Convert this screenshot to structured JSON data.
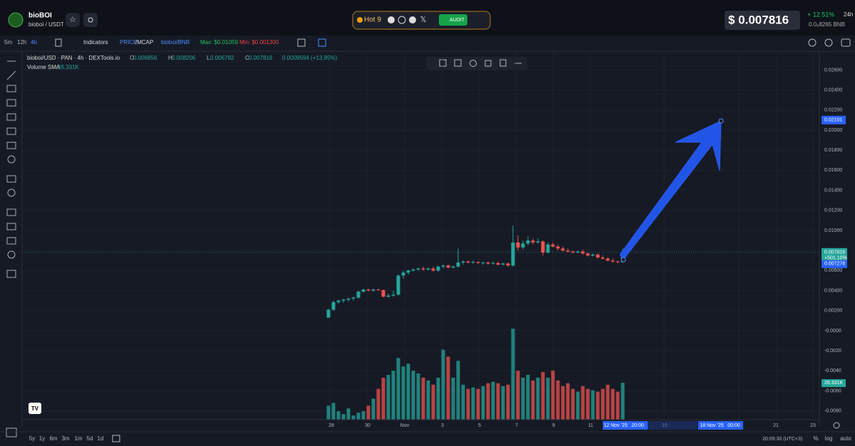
{
  "header": {
    "token": "bioBOI",
    "pair": "bioboi / USDT",
    "hot": "Hot 9",
    "audit": "AUDIT",
    "price": "$ 0.007816",
    "change": "+ 12.51%",
    "period": "24h",
    "bnb": "0.0₈8265 BNB"
  },
  "toolbar": {
    "timeframes": [
      "5m",
      "12h",
      "4h"
    ],
    "indicators": "Indicators",
    "price": "PRICE",
    "mcap": "/MCAP",
    "quote": "bioboi/BNB",
    "max": "Max: $0.01059",
    "min": "Min: $0.001300"
  },
  "legend": {
    "source": "bioboi/USD · PAN · 4h · DEXTools.io",
    "ohlc": [
      {
        "k": "O",
        "v": "0.006856"
      },
      {
        "k": "H",
        "v": "0.008206"
      },
      {
        "k": "L",
        "v": "0.006792"
      },
      {
        "k": "C",
        "v": "0.007816"
      }
    ],
    "change": "0.0009594 (+13.99%)",
    "volume": "Volume SMA",
    "volume_value": "26.331K"
  },
  "chart": {
    "type": "candlestick",
    "ylim": [
      -0.00887,
      0.02674
    ],
    "yticks": [
      {
        "value": 0.026,
        "label": "0.02600"
      },
      {
        "value": 0.024,
        "label": "0.02400"
      },
      {
        "value": 0.022,
        "label": "0.02200"
      },
      {
        "value": 0.02,
        "label": "0.02000"
      },
      {
        "value": 0.018,
        "label": "0.01800"
      },
      {
        "value": 0.016,
        "label": "0.01600"
      },
      {
        "value": 0.014,
        "label": "0.01400"
      },
      {
        "value": 0.012,
        "label": "0.01200"
      },
      {
        "value": 0.01,
        "label": "0.01000"
      },
      {
        "value": 0.008,
        "label": "0.00800"
      },
      {
        "value": 0.006,
        "label": "0.00600"
      },
      {
        "value": 0.004,
        "label": "0.00400"
      },
      {
        "value": 0.002,
        "label": "0.00200"
      },
      {
        "value": 0,
        "label": "-0.0000"
      },
      {
        "value": -0.002,
        "label": "-0.0020"
      },
      {
        "value": -0.004,
        "label": "-0.0040"
      },
      {
        "value": -0.006,
        "label": "-0.0060"
      },
      {
        "value": -0.008,
        "label": "-0.0080"
      }
    ],
    "markers": {
      "target": {
        "value": 0.02101,
        "label": "0.02101"
      },
      "last": {
        "value": 0.007816,
        "label": "0.007816",
        "pct": "+501.10%"
      },
      "low": {
        "value": 0.007276,
        "label": "0.007276"
      },
      "volume": "26.331K"
    },
    "candles": [
      [
        0.0013,
        0.0022,
        0.0013,
        0.0021,
        10
      ],
      [
        0.0021,
        0.003,
        0.002,
        0.00285,
        12
      ],
      [
        0.00285,
        0.0031,
        0.0027,
        0.003,
        6
      ],
      [
        0.003,
        0.0032,
        0.0028,
        0.0031,
        4
      ],
      [
        0.0031,
        0.0033,
        0.0029,
        0.0032,
        8
      ],
      [
        0.0032,
        0.0034,
        0.003,
        0.0033,
        3
      ],
      [
        0.0033,
        0.004,
        0.0032,
        0.0039,
        5
      ],
      [
        0.0039,
        0.0042,
        0.0038,
        0.0041,
        6
      ],
      [
        0.0041,
        0.0042,
        0.00395,
        0.004,
        10
      ],
      [
        0.004,
        0.0042,
        0.0039,
        0.0041,
        15
      ],
      [
        0.0041,
        0.0042,
        0.004,
        0.00405,
        22
      ],
      [
        0.00405,
        0.0041,
        0.0033,
        0.0034,
        30
      ],
      [
        0.0034,
        0.0037,
        0.0033,
        0.0035,
        32
      ],
      [
        0.0035,
        0.004,
        0.0034,
        0.0036,
        35
      ],
      [
        0.0036,
        0.0056,
        0.0035,
        0.0055,
        44
      ],
      [
        0.0055,
        0.006,
        0.0052,
        0.0058,
        38
      ],
      [
        0.0058,
        0.0061,
        0.0056,
        0.006,
        40
      ],
      [
        0.006,
        0.0062,
        0.0059,
        0.0061,
        35
      ],
      [
        0.0061,
        0.0063,
        0.006,
        0.0062,
        33
      ],
      [
        0.0062,
        0.0064,
        0.006,
        0.0061,
        30
      ],
      [
        0.0061,
        0.0063,
        0.006,
        0.0062,
        28
      ],
      [
        0.0062,
        0.0064,
        0.0059,
        0.006,
        25
      ],
      [
        0.006,
        0.0065,
        0.0059,
        0.0064,
        30
      ],
      [
        0.0064,
        0.0066,
        0.0062,
        0.0065,
        50
      ],
      [
        0.0065,
        0.0066,
        0.0062,
        0.0063,
        45
      ],
      [
        0.0063,
        0.0065,
        0.0062,
        0.0064,
        30
      ],
      [
        0.0064,
        0.0082,
        0.0063,
        0.0068,
        42
      ],
      [
        0.0068,
        0.007,
        0.0066,
        0.0069,
        25
      ],
      [
        0.0069,
        0.007,
        0.0067,
        0.0068,
        22
      ],
      [
        0.0068,
        0.007,
        0.0067,
        0.00685,
        23
      ],
      [
        0.00685,
        0.0069,
        0.0067,
        0.00675,
        22
      ],
      [
        0.00675,
        0.0069,
        0.0066,
        0.0068,
        24
      ],
      [
        0.0068,
        0.0069,
        0.0066,
        0.0067,
        26
      ],
      [
        0.0067,
        0.0069,
        0.0066,
        0.00675,
        27
      ],
      [
        0.00675,
        0.0069,
        0.0065,
        0.0066,
        26
      ],
      [
        0.0066,
        0.0068,
        0.0065,
        0.0067,
        24
      ],
      [
        0.0067,
        0.0068,
        0.0064,
        0.0065,
        25
      ],
      [
        0.0065,
        0.0105,
        0.0064,
        0.0088,
        65
      ],
      [
        0.0088,
        0.0095,
        0.008,
        0.0083,
        35
      ],
      [
        0.0083,
        0.009,
        0.0081,
        0.0087,
        30
      ],
      [
        0.0087,
        0.0094,
        0.0085,
        0.009,
        32
      ],
      [
        0.009,
        0.0092,
        0.0086,
        0.0088,
        28
      ],
      [
        0.0088,
        0.0092,
        0.0087,
        0.0089,
        30
      ],
      [
        0.0089,
        0.009,
        0.0075,
        0.0078,
        34
      ],
      [
        0.0078,
        0.0088,
        0.0077,
        0.0086,
        30
      ],
      [
        0.0086,
        0.0088,
        0.0083,
        0.0084,
        35
      ],
      [
        0.0084,
        0.0086,
        0.008,
        0.0082,
        28
      ],
      [
        0.0082,
        0.0084,
        0.0079,
        0.008,
        24
      ],
      [
        0.008,
        0.0082,
        0.0078,
        0.0079,
        26
      ],
      [
        0.0079,
        0.008,
        0.0077,
        0.0078,
        22
      ],
      [
        0.0078,
        0.008,
        0.0077,
        0.0079,
        20
      ],
      [
        0.0079,
        0.0081,
        0.0076,
        0.0077,
        24
      ],
      [
        0.0077,
        0.0078,
        0.0074,
        0.0075,
        22
      ],
      [
        0.0075,
        0.0077,
        0.0074,
        0.0076,
        21
      ],
      [
        0.0076,
        0.0077,
        0.0072,
        0.0073,
        20
      ],
      [
        0.0073,
        0.0075,
        0.0071,
        0.0072,
        22
      ],
      [
        0.0072,
        0.0073,
        0.0069,
        0.007,
        25
      ],
      [
        0.007,
        0.0072,
        0.0068,
        0.0069,
        22
      ],
      [
        0.0069,
        0.007,
        0.0067,
        0.00686,
        20
      ],
      [
        0.006856,
        0.008206,
        0.006792,
        0.007816,
        26.331
      ]
    ],
    "up_color": "#26a69a",
    "down_color": "#ef5350",
    "xlabels": [
      "28",
      "30",
      "Nov",
      "3",
      "5",
      "7",
      "9",
      "11",
      "15",
      "21",
      "23"
    ],
    "xcursor": [
      "12 Nov '25",
      "20:00",
      "18 Nov '25",
      "00:00"
    ]
  },
  "footer": {
    "ranges": [
      "5y",
      "1y",
      "6m",
      "3m",
      "1m",
      "5d",
      "1d"
    ],
    "time": "20:09:30 (UTC+3)",
    "pct": "%",
    "log": "log",
    "auto": "auto"
  }
}
